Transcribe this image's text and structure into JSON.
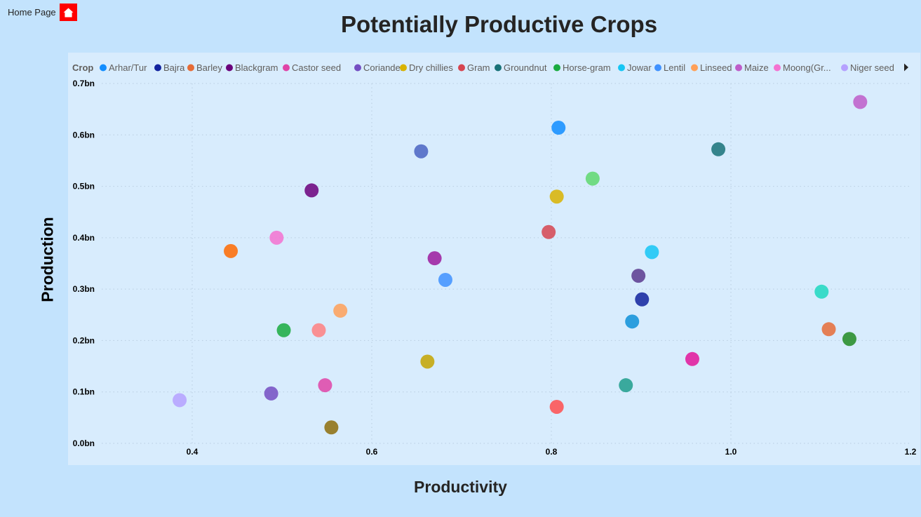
{
  "nav": {
    "home_label": "Home Page",
    "home_icon": "home-icon",
    "home_icon_bg": "#ff0000"
  },
  "chart_data": {
    "type": "scatter",
    "title": "Potentially Productive Crops",
    "xlabel": "Productivity",
    "ylabel": "Production",
    "xlim": [
      0.3,
      1.2
    ],
    "ylim": [
      0,
      0.7
    ],
    "x_ticks": [
      0.4,
      0.6,
      0.8,
      1.0,
      1.2
    ],
    "x_tick_labels": [
      "0.4",
      "0.6",
      "0.8",
      "1.0",
      "1.2"
    ],
    "y_ticks": [
      0,
      0.1,
      0.2,
      0.3,
      0.4,
      0.5,
      0.6,
      0.7
    ],
    "y_tick_labels": [
      "0.0bn",
      "0.1bn",
      "0.2bn",
      "0.3bn",
      "0.4bn",
      "0.5bn",
      "0.6bn",
      "0.7bn"
    ],
    "grid": true,
    "legend_title": "Crop",
    "legend_position": "top",
    "legend": [
      {
        "name": "Arhar/Tur",
        "color": "#118dff"
      },
      {
        "name": "Bajra",
        "color": "#12239e"
      },
      {
        "name": "Barley",
        "color": "#e66c37"
      },
      {
        "name": "Blackgram",
        "color": "#6b007b"
      },
      {
        "name": "Castor seed",
        "color": "#e044a7"
      },
      {
        "name": "Coriander",
        "color": "#744ec2"
      },
      {
        "name": "Dry chillies",
        "color": "#d9b300"
      },
      {
        "name": "Gram",
        "color": "#d64550"
      },
      {
        "name": "Groundnut",
        "color": "#197278"
      },
      {
        "name": "Horse-gram",
        "color": "#1aab40"
      },
      {
        "name": "Jowar",
        "color": "#15c6f4"
      },
      {
        "name": "Lentil",
        "color": "#4092ff"
      },
      {
        "name": "Linseed",
        "color": "#ffa058"
      },
      {
        "name": "Maize",
        "color": "#be5dc9"
      },
      {
        "name": "Moong(Gr...",
        "color": "#f472d0"
      },
      {
        "name": "Niger seed",
        "color": "#b5a1ff"
      }
    ],
    "points": [
      {
        "x": 0.386,
        "y": 0.084,
        "color": "#b5a1ff"
      },
      {
        "x": 0.443,
        "y": 0.374,
        "color": "#ff6a00"
      },
      {
        "x": 0.488,
        "y": 0.097,
        "color": "#744ec2"
      },
      {
        "x": 0.494,
        "y": 0.4,
        "color": "#f472d0"
      },
      {
        "x": 0.502,
        "y": 0.22,
        "color": "#1aab40"
      },
      {
        "x": 0.533,
        "y": 0.492,
        "color": "#6b007b"
      },
      {
        "x": 0.541,
        "y": 0.22,
        "color": "#ff8080"
      },
      {
        "x": 0.548,
        "y": 0.113,
        "color": "#e044a7"
      },
      {
        "x": 0.555,
        "y": 0.031,
        "color": "#8d6d0b"
      },
      {
        "x": 0.565,
        "y": 0.258,
        "color": "#ffa058"
      },
      {
        "x": 0.655,
        "y": 0.568,
        "color": "#4a64c2"
      },
      {
        "x": 0.662,
        "y": 0.159,
        "color": "#c4a400"
      },
      {
        "x": 0.67,
        "y": 0.36,
        "color": "#9c1a9e"
      },
      {
        "x": 0.682,
        "y": 0.318,
        "color": "#4092ff"
      },
      {
        "x": 0.797,
        "y": 0.411,
        "color": "#d64550"
      },
      {
        "x": 0.806,
        "y": 0.071,
        "color": "#ff4d4d"
      },
      {
        "x": 0.806,
        "y": 0.48,
        "color": "#d9b300"
      },
      {
        "x": 0.808,
        "y": 0.614,
        "color": "#118dff"
      },
      {
        "x": 0.846,
        "y": 0.515,
        "color": "#5fd86e"
      },
      {
        "x": 0.883,
        "y": 0.113,
        "color": "#1e9e8c"
      },
      {
        "x": 0.89,
        "y": 0.237,
        "color": "#0e90d8"
      },
      {
        "x": 0.897,
        "y": 0.326,
        "color": "#5b3a8e"
      },
      {
        "x": 0.901,
        "y": 0.28,
        "color": "#12239e"
      },
      {
        "x": 0.912,
        "y": 0.372,
        "color": "#15c6f4"
      },
      {
        "x": 0.957,
        "y": 0.164,
        "color": "#e3159a"
      },
      {
        "x": 0.986,
        "y": 0.572,
        "color": "#197278"
      },
      {
        "x": 1.101,
        "y": 0.295,
        "color": "#1fd8c0"
      },
      {
        "x": 1.109,
        "y": 0.222,
        "color": "#e66c37"
      },
      {
        "x": 1.132,
        "y": 0.203,
        "color": "#228b22"
      },
      {
        "x": 1.144,
        "y": 0.664,
        "color": "#be5dc9"
      }
    ]
  }
}
